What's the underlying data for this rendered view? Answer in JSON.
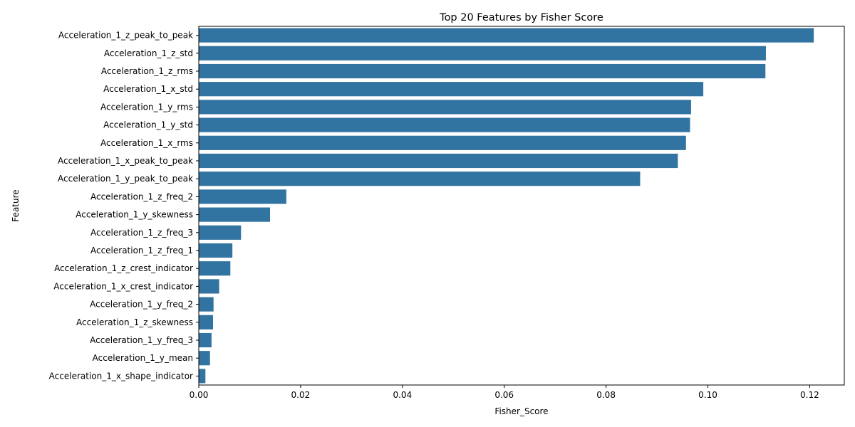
{
  "chart_data": {
    "type": "bar",
    "orientation": "horizontal",
    "title": "Top 20 Features by Fisher Score",
    "xlabel": "Fisher_Score",
    "ylabel": "Feature",
    "xlim": [
      0,
      0.1268
    ],
    "xticks": [
      0.0,
      0.02,
      0.04,
      0.06,
      0.08,
      0.1,
      0.12
    ],
    "xtick_labels": [
      "0.00",
      "0.02",
      "0.04",
      "0.06",
      "0.08",
      "0.10",
      "0.12"
    ],
    "grid": false,
    "bar_color": "#3274a1",
    "categories": [
      "Acceleration_1_z_peak_to_peak",
      "Acceleration_1_z_std",
      "Acceleration_1_z_rms",
      "Acceleration_1_x_std",
      "Acceleration_1_y_rms",
      "Acceleration_1_y_std",
      "Acceleration_1_x_rms",
      "Acceleration_1_x_peak_to_peak",
      "Acceleration_1_y_peak_to_peak",
      "Acceleration_1_z_freq_2",
      "Acceleration_1_y_skewness",
      "Acceleration_1_z_freq_3",
      "Acceleration_1_z_freq_1",
      "Acceleration_1_z_crest_indicator",
      "Acceleration_1_x_crest_indicator",
      "Acceleration_1_y_freq_2",
      "Acceleration_1_z_skewness",
      "Acceleration_1_y_freq_3",
      "Acceleration_1_y_mean",
      "Acceleration_1_x_shape_indicator"
    ],
    "values": [
      0.1208,
      0.1114,
      0.1113,
      0.0991,
      0.0967,
      0.0965,
      0.0957,
      0.0941,
      0.0867,
      0.0172,
      0.014,
      0.0083,
      0.0066,
      0.0062,
      0.004,
      0.0029,
      0.0028,
      0.0025,
      0.0022,
      0.0013
    ]
  }
}
